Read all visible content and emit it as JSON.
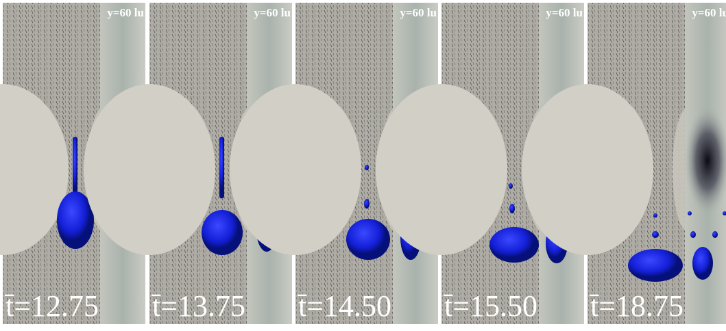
{
  "panels": [
    {
      "position": "y=60 lu",
      "time": "t̄=12.75"
    },
    {
      "position": "y=60 lu",
      "time": "t̄=13.75"
    },
    {
      "position": "y=60 lu",
      "time": "t̄=14.50"
    },
    {
      "position": "y=60 lu",
      "time": "t̄=15.50"
    },
    {
      "position": "y=60 lu",
      "time": "t̄=18.75"
    }
  ]
}
